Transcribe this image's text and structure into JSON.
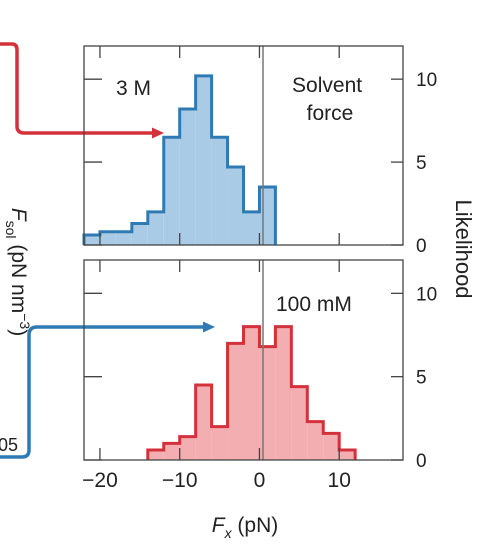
{
  "colors": {
    "blue_fill": "#a9cbe6",
    "blue_line": "#2f7ab3",
    "red_fill": "#f2aeb1",
    "red_line": "#d3323b",
    "axis": "#444444",
    "zero_line": "#777777"
  },
  "left_fragments": {
    "ylabel_parts": [
      "F",
      "sol",
      " (pN nm",
      "−3",
      ")"
    ],
    "tick_label": "05"
  },
  "chart_data": [
    {
      "type": "bar",
      "panel": "top",
      "annotation": "3 M",
      "corner_text": [
        "Solvent",
        "force"
      ],
      "series_color": "#2f7ab3",
      "bin_width": 2,
      "bin_left_edges": [
        -22,
        -20,
        -18,
        -16,
        -14,
        -12,
        -10,
        -8,
        -6,
        -4,
        -2,
        0
      ],
      "values": [
        0.6,
        0.8,
        0.8,
        1.3,
        2.0,
        6.5,
        8.2,
        10.2,
        6.5,
        4.7,
        2.0,
        3.5
      ],
      "xlim": [
        -22,
        18
      ],
      "ylim": [
        0,
        12
      ],
      "yticks": [
        0,
        5,
        10
      ],
      "ytick_labels": [
        "0",
        "5",
        "10"
      ],
      "ylabel": "Likelihood",
      "zero_line": 0
    },
    {
      "type": "bar",
      "panel": "bottom",
      "annotation": "100 mM",
      "series_color": "#d3323b",
      "bin_width": 2,
      "bin_left_edges": [
        -14,
        -12,
        -10,
        -8,
        -6,
        -4,
        -2,
        0,
        2,
        4,
        6,
        8,
        10
      ],
      "values": [
        0.6,
        1.0,
        1.4,
        4.5,
        2.0,
        7.0,
        8.0,
        6.8,
        8.0,
        4.4,
        2.3,
        1.6,
        0.6
      ],
      "xlim": [
        -22,
        18
      ],
      "ylim": [
        0,
        12
      ],
      "xticks": [
        -20,
        -10,
        0,
        10
      ],
      "xtick_labels": [
        "−20",
        "−10",
        "0",
        "10"
      ],
      "yticks": [
        0,
        5,
        10
      ],
      "ytick_labels": [
        "0",
        "5",
        "10"
      ],
      "xlabel_parts": [
        "F",
        "x",
        " (pN)"
      ],
      "zero_line": 0
    }
  ]
}
